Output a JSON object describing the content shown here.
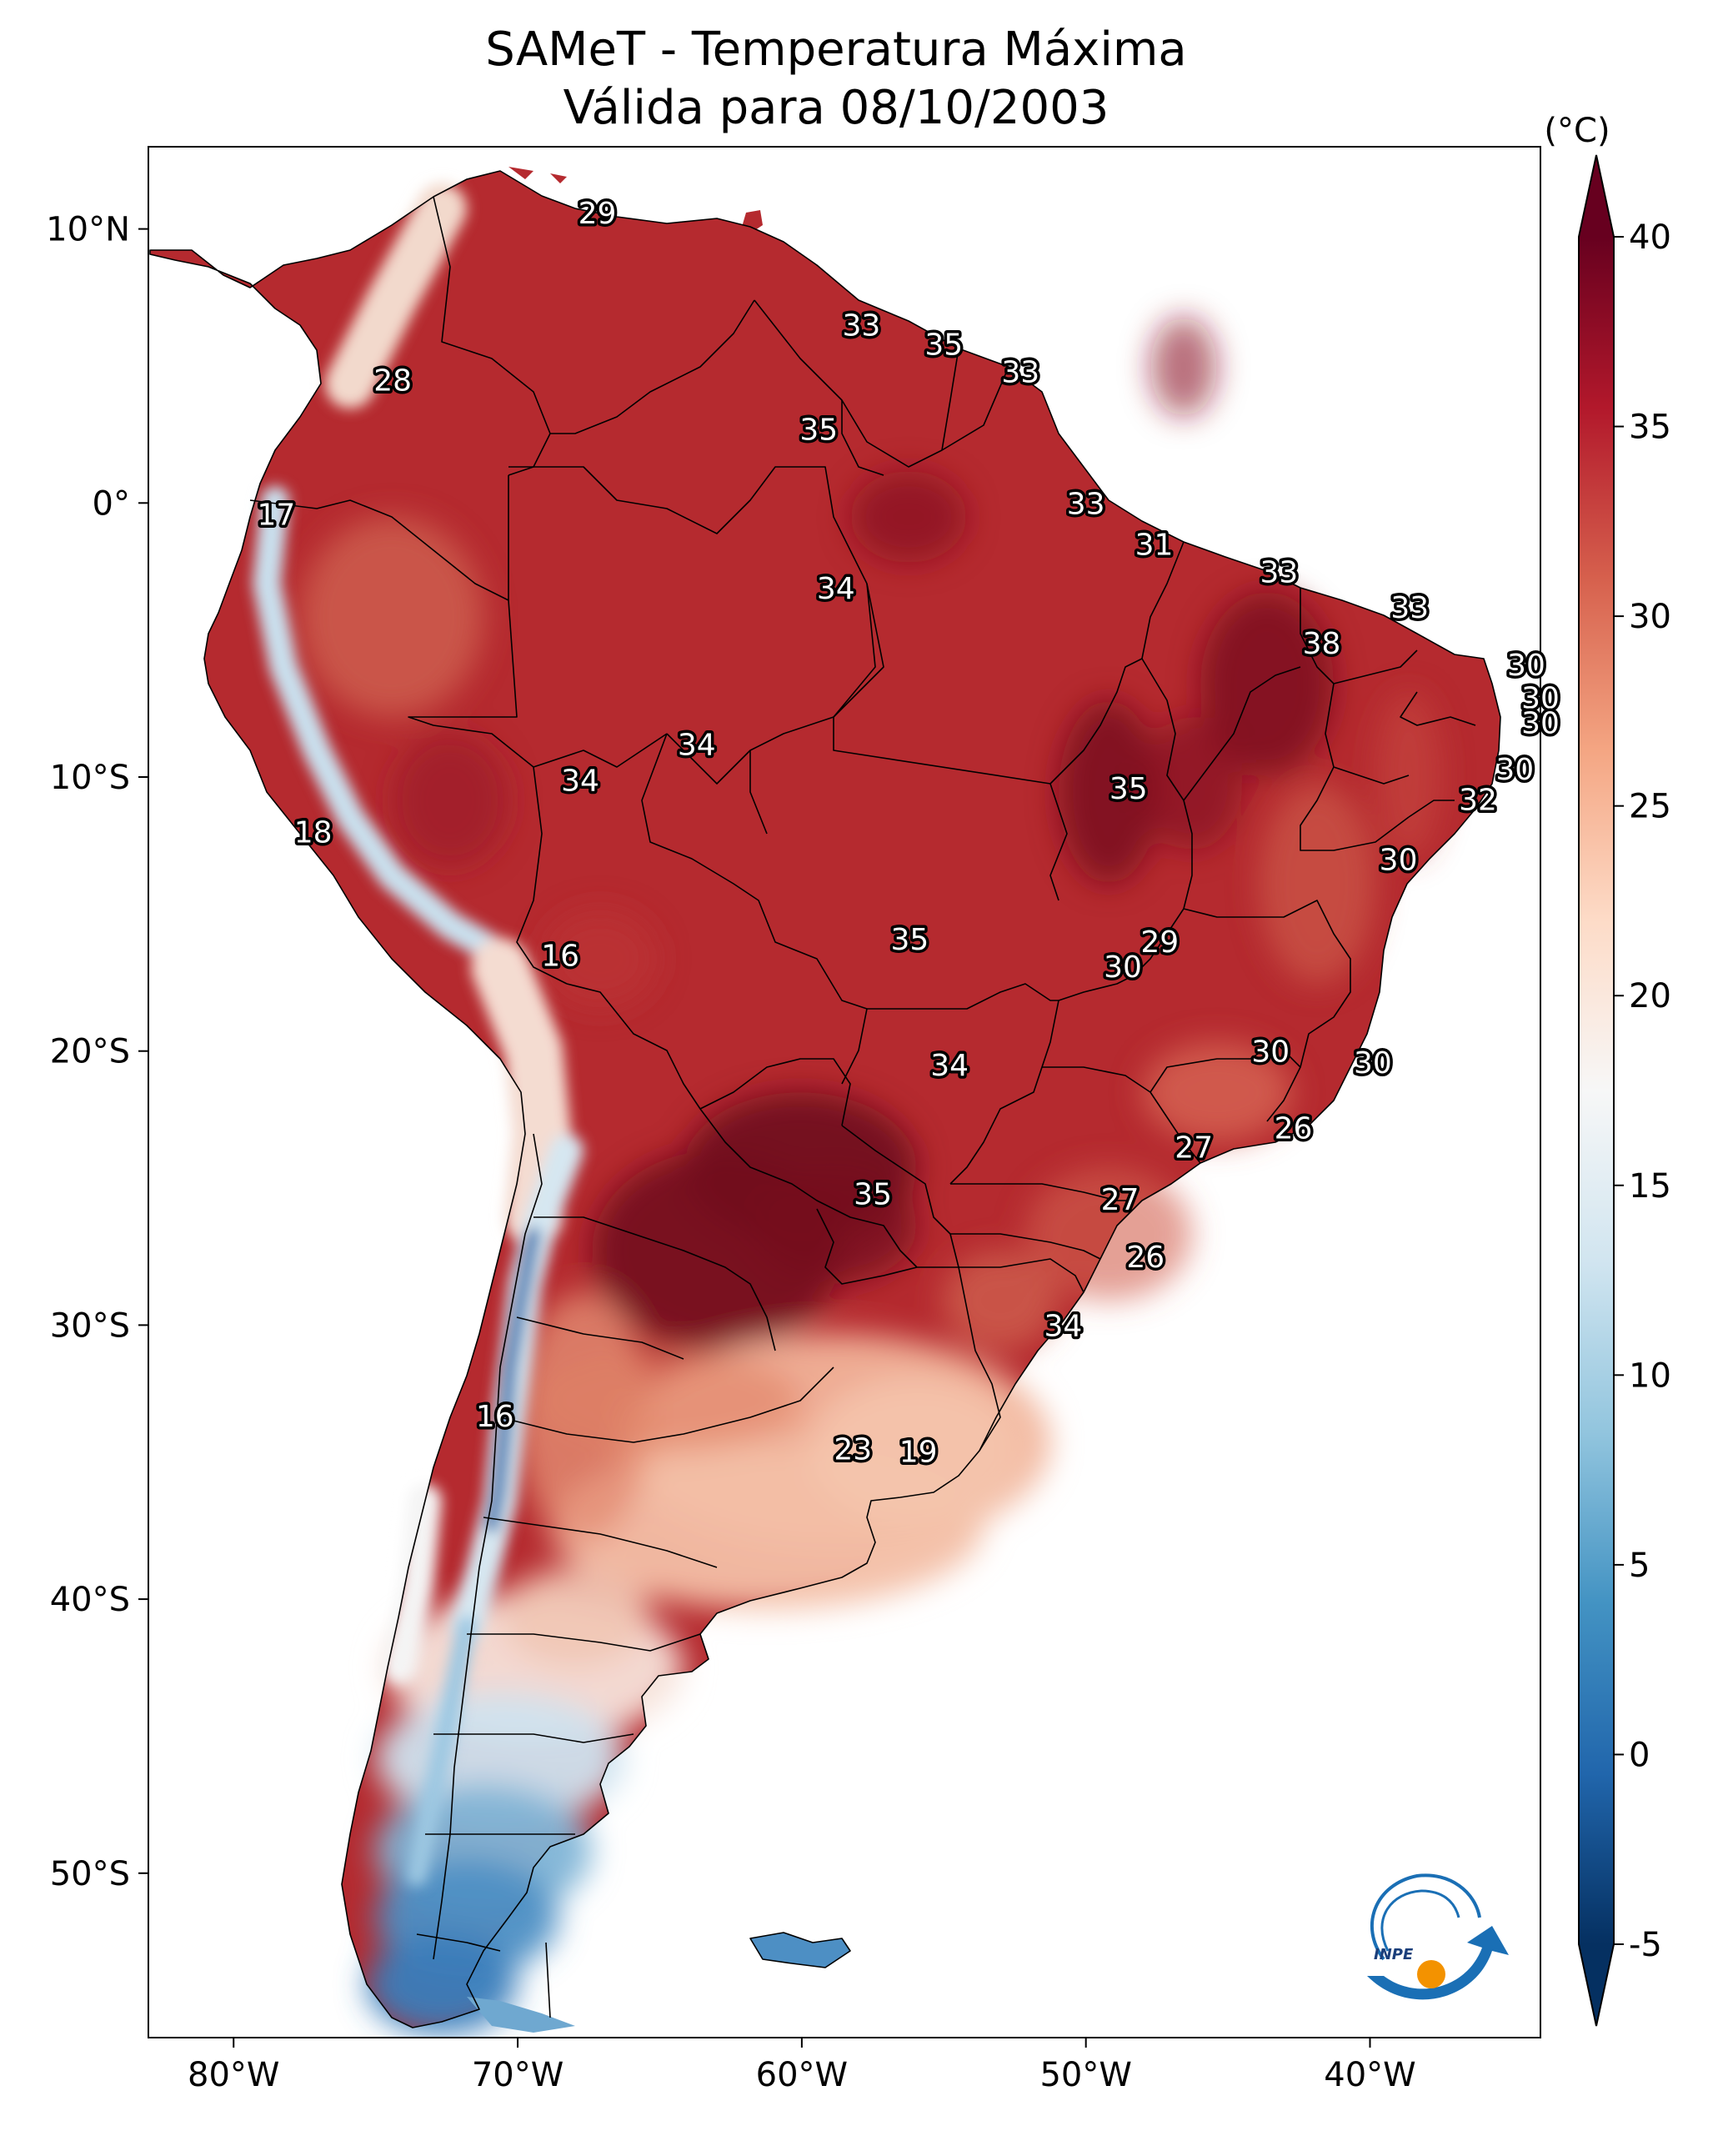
{
  "title": {
    "line1": "SAMeT - Temperatura Máxima",
    "line2": "Válida para 08/10/2003"
  },
  "axes": {
    "lon_ticks": [
      "80°W",
      "70°W",
      "60°W",
      "50°W",
      "40°W"
    ],
    "lat_ticks": [
      "10°N",
      "0°",
      "10°S",
      "20°S",
      "30°S",
      "40°S",
      "50°S"
    ],
    "lon_values": [
      -80,
      -70,
      -60,
      -50,
      -40
    ],
    "lat_values": [
      10,
      0,
      -10,
      -20,
      -30,
      -40,
      -50
    ],
    "lon_range": [
      -83,
      -34
    ],
    "lat_range": [
      -56,
      13
    ]
  },
  "colorbar": {
    "unit": "(°C)",
    "ticks": [
      "40",
      "35",
      "30",
      "25",
      "20",
      "15",
      "10",
      "5",
      "0",
      "-5"
    ],
    "tick_values": [
      40,
      35,
      30,
      25,
      20,
      15,
      10,
      5,
      0,
      -5
    ],
    "range": [
      -5,
      40
    ],
    "colormap": "RdBu_r",
    "colors": [
      "#053061",
      "#2166ac",
      "#4393c3",
      "#92c5de",
      "#d1e5f0",
      "#f7f7f7",
      "#fddbc7",
      "#f4a582",
      "#d6604d",
      "#b2182b",
      "#67001f"
    ]
  },
  "logo": {
    "text": "INPE",
    "blue": "#1a6fb5",
    "orange": "#f39200"
  },
  "labels": [
    {
      "v": "29",
      "lon": -67.2,
      "lat": 10.6
    },
    {
      "v": "33",
      "lon": -57.9,
      "lat": 6.5
    },
    {
      "v": "35",
      "lon": -55.0,
      "lat": 5.8
    },
    {
      "v": "33",
      "lon": -52.3,
      "lat": 4.8
    },
    {
      "v": "28",
      "lon": -74.4,
      "lat": 4.5
    },
    {
      "v": "35",
      "lon": -59.4,
      "lat": 2.7
    },
    {
      "v": "17",
      "lon": -78.5,
      "lat": -0.4
    },
    {
      "v": "33",
      "lon": -50.0,
      "lat": 0.0
    },
    {
      "v": "31",
      "lon": -47.6,
      "lat": -1.5
    },
    {
      "v": "33",
      "lon": -43.2,
      "lat": -2.5
    },
    {
      "v": "34",
      "lon": -58.8,
      "lat": -3.1
    },
    {
      "v": "33",
      "lon": -38.6,
      "lat": -3.8
    },
    {
      "v": "38",
      "lon": -41.7,
      "lat": -5.1
    },
    {
      "v": "30",
      "lon": -34.5,
      "lat": -5.9
    },
    {
      "v": "30",
      "lon": -34.0,
      "lat": -7.1
    },
    {
      "v": "30",
      "lon": -34.0,
      "lat": -8.0
    },
    {
      "v": "34",
      "lon": -63.7,
      "lat": -8.8
    },
    {
      "v": "34",
      "lon": -67.8,
      "lat": -10.1
    },
    {
      "v": "35",
      "lon": -48.5,
      "lat": -10.4
    },
    {
      "v": "30",
      "lon": -34.9,
      "lat": -9.7
    },
    {
      "v": "32",
      "lon": -36.2,
      "lat": -10.8
    },
    {
      "v": "18",
      "lon": -77.2,
      "lat": -12.0
    },
    {
      "v": "30",
      "lon": -39.0,
      "lat": -13.0
    },
    {
      "v": "35",
      "lon": -56.2,
      "lat": -15.9
    },
    {
      "v": "29",
      "lon": -47.4,
      "lat": -16.0
    },
    {
      "v": "16",
      "lon": -68.5,
      "lat": -16.5
    },
    {
      "v": "30",
      "lon": -48.7,
      "lat": -16.9
    },
    {
      "v": "30",
      "lon": -43.5,
      "lat": -20.0
    },
    {
      "v": "30",
      "lon": -39.9,
      "lat": -20.4
    },
    {
      "v": "34",
      "lon": -54.8,
      "lat": -20.5
    },
    {
      "v": "26",
      "lon": -42.7,
      "lat": -22.8
    },
    {
      "v": "27",
      "lon": -46.2,
      "lat": -23.5
    },
    {
      "v": "27",
      "lon": -48.8,
      "lat": -25.4
    },
    {
      "v": "35",
      "lon": -57.5,
      "lat": -25.2
    },
    {
      "v": "26",
      "lon": -47.9,
      "lat": -27.5
    },
    {
      "v": "34",
      "lon": -50.8,
      "lat": -30.0
    },
    {
      "v": "16",
      "lon": -70.8,
      "lat": -33.3
    },
    {
      "v": "23",
      "lon": -58.2,
      "lat": -34.5
    },
    {
      "v": "19",
      "lon": -55.9,
      "lat": -34.6
    }
  ]
}
